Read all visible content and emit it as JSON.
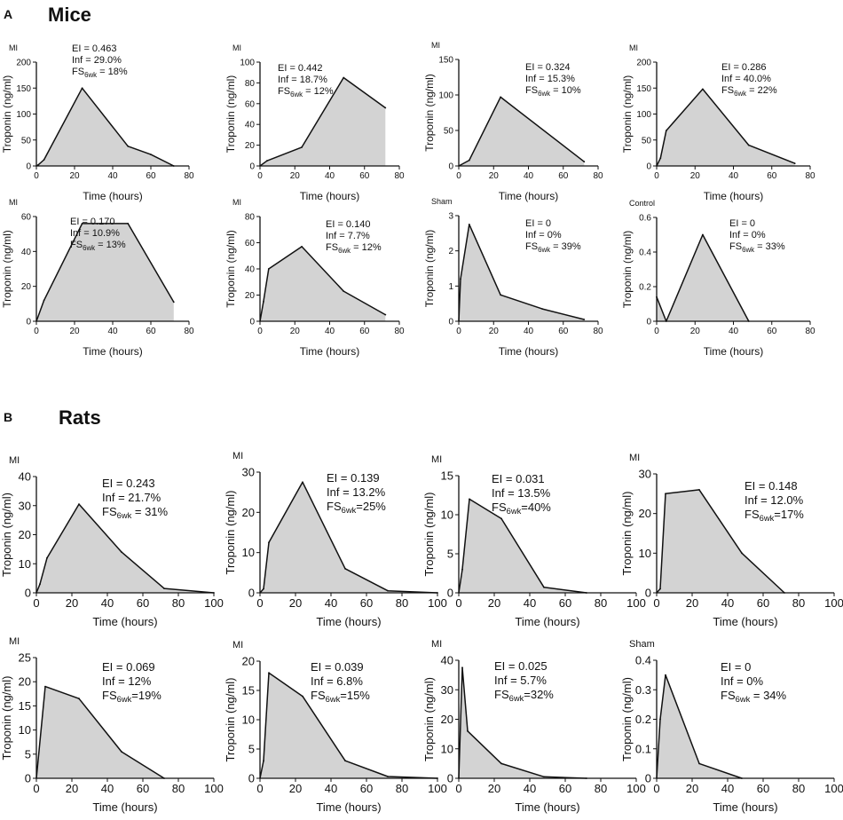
{
  "panels": [
    {
      "letter": "A",
      "title": "Mice"
    },
    {
      "letter": "B",
      "title": "Rats"
    }
  ],
  "chart_data": [
    {
      "type": "area",
      "panel": "A",
      "group": "MI",
      "title": "MI",
      "xlabel": "Time (hours)",
      "ylabel": "Troponin (ng/ml)",
      "xlim": [
        0,
        80
      ],
      "ylim": [
        0,
        200
      ],
      "xticks": [
        0,
        20,
        40,
        60,
        80
      ],
      "yticks": [
        0,
        50,
        100,
        150,
        200
      ],
      "x": [
        0,
        1,
        4,
        24,
        48,
        60,
        72
      ],
      "y": [
        0,
        2,
        12,
        150,
        38,
        22,
        0
      ],
      "annotations": [
        "EI = 0.463",
        "Inf = 29.0%",
        "FS",
        "6wk",
        " = 18%"
      ]
    },
    {
      "type": "area",
      "panel": "A",
      "group": "MI",
      "title": "MI",
      "xlabel": "Time (hours)",
      "ylabel": "Troponin (ng/ml)",
      "xlim": [
        0,
        80
      ],
      "ylim": [
        0,
        100
      ],
      "xticks": [
        0,
        20,
        40,
        60,
        80
      ],
      "yticks": [
        0,
        20,
        40,
        60,
        80,
        100
      ],
      "x": [
        0,
        4,
        24,
        48,
        72
      ],
      "y": [
        0,
        5,
        18,
        85,
        56
      ],
      "annotations": [
        "EI = 0.442",
        "Inf = 18.7%",
        "FS",
        "6wk",
        " = 12%"
      ]
    },
    {
      "type": "area",
      "panel": "A",
      "group": "MI",
      "title": "MI",
      "xlabel": "Time (hours)",
      "ylabel": "Troponin (ng/ml)",
      "xlim": [
        0,
        80
      ],
      "ylim": [
        0,
        150
      ],
      "xticks": [
        0,
        20,
        40,
        60,
        80
      ],
      "yticks": [
        0,
        50,
        100,
        150
      ],
      "x": [
        0,
        6,
        24,
        72
      ],
      "y": [
        0,
        8,
        97,
        6
      ],
      "annotations": [
        "EI = 0.324",
        "Inf = 15.3%",
        "FS",
        "6wk",
        " = 10%"
      ]
    },
    {
      "type": "area",
      "panel": "A",
      "group": "MI",
      "title": "MI",
      "xlabel": "Time (hours)",
      "ylabel": "Troponin (ng/ml)",
      "xlim": [
        0,
        80
      ],
      "ylim": [
        0,
        200
      ],
      "xticks": [
        0,
        20,
        40,
        60,
        80
      ],
      "yticks": [
        0,
        50,
        100,
        150,
        200
      ],
      "x": [
        0,
        2,
        5,
        24,
        48,
        72
      ],
      "y": [
        0,
        15,
        68,
        148,
        40,
        5
      ],
      "annotations": [
        "EI = 0.286",
        "Inf = 40.0%",
        "FS",
        "6wk",
        " = 22%"
      ]
    },
    {
      "type": "area",
      "panel": "A",
      "group": "MI",
      "title": "MI",
      "xlabel": "Time (hours)",
      "ylabel": "Troponin (ng/ml)",
      "xlim": [
        0,
        80
      ],
      "ylim": [
        0,
        60
      ],
      "xticks": [
        0,
        20,
        40,
        60,
        80
      ],
      "yticks": [
        0,
        20,
        40,
        60
      ],
      "x": [
        0,
        4,
        24,
        48,
        72
      ],
      "y": [
        0,
        12,
        56,
        56,
        11
      ],
      "annotations": [
        "EI = 0.170",
        "Inf = 10.9%",
        "FS",
        "6wk",
        " = 13%"
      ]
    },
    {
      "type": "area",
      "panel": "A",
      "group": "MI",
      "title": "MI",
      "xlabel": "Time (hours)",
      "ylabel": "Troponin (ng/ml)",
      "xlim": [
        0,
        80
      ],
      "ylim": [
        0,
        80
      ],
      "xticks": [
        0,
        20,
        40,
        60,
        80
      ],
      "yticks": [
        0,
        20,
        40,
        60,
        80
      ],
      "x": [
        0,
        2,
        5,
        24,
        48,
        72
      ],
      "y": [
        0,
        15,
        40,
        57,
        23,
        5
      ],
      "annotations": [
        "EI = 0.140",
        "Inf = 7.7%",
        "FS",
        "6wk",
        " = 12%"
      ]
    },
    {
      "type": "area",
      "panel": "A",
      "group": "Sham",
      "title": "Sham",
      "xlabel": "Time (hours)",
      "ylabel": "Troponin (ng/ml)",
      "xlim": [
        0,
        80
      ],
      "ylim": [
        0,
        3
      ],
      "xticks": [
        0,
        20,
        40,
        60,
        80
      ],
      "yticks": [
        0,
        1,
        2,
        3
      ],
      "x": [
        0,
        1,
        6,
        24,
        48,
        72
      ],
      "y": [
        0,
        1.2,
        2.75,
        0.75,
        0.35,
        0.05
      ],
      "annotations": [
        "EI = 0",
        "Inf = 0%",
        "FS",
        "6wk",
        " = 39%"
      ]
    },
    {
      "type": "area",
      "panel": "A",
      "group": "Control",
      "title": "Control",
      "xlabel": "Time (hours)",
      "ylabel": "Troponin (ng/ml)",
      "xlim": [
        0,
        80
      ],
      "ylim": [
        0,
        0.6
      ],
      "xticks": [
        0,
        20,
        40,
        60,
        80
      ],
      "yticks": [
        0,
        0.2,
        0.4,
        0.6
      ],
      "x": [
        0,
        5,
        24,
        48
      ],
      "y": [
        0.14,
        0,
        0.5,
        0
      ],
      "annotations": [
        "EI = 0",
        "Inf = 0%",
        "FS",
        "6wk",
        " = 33%"
      ]
    },
    {
      "type": "area",
      "panel": "B",
      "group": "MI",
      "title": "MI",
      "xlabel": "Time (hours)",
      "ylabel": "Troponin (ng/ml)",
      "xlim": [
        0,
        100
      ],
      "ylim": [
        0,
        40
      ],
      "xticks": [
        0,
        20,
        40,
        60,
        80,
        100
      ],
      "yticks": [
        0,
        10,
        20,
        30,
        40
      ],
      "x": [
        0,
        2,
        6,
        24,
        48,
        72,
        100
      ],
      "y": [
        0,
        3,
        12,
        30.5,
        14,
        1.5,
        0
      ],
      "annotations": [
        "EI = 0.243",
        "Inf = 21.7%",
        "FS",
        "6wk",
        " = 31%"
      ]
    },
    {
      "type": "area",
      "panel": "B",
      "group": "MI",
      "title": "MI",
      "xlabel": "Time (hours)",
      "ylabel": "Troponin (ng/ml)",
      "xlim": [
        0,
        100
      ],
      "ylim": [
        0,
        30
      ],
      "xticks": [
        0,
        20,
        40,
        60,
        80,
        100
      ],
      "yticks": [
        0,
        10,
        20,
        30
      ],
      "x": [
        0,
        2,
        5,
        24,
        48,
        72,
        100
      ],
      "y": [
        0,
        1,
        12.5,
        27.5,
        6,
        0.5,
        0
      ],
      "annotations": [
        "EI = 0.139",
        "Inf = 13.2%",
        "FS",
        "6wk",
        "=25%"
      ]
    },
    {
      "type": "area",
      "panel": "B",
      "group": "MI",
      "title": "MI",
      "xlabel": "Time (hours)",
      "ylabel": "Troponin (ng/ml)",
      "xlim": [
        0,
        100
      ],
      "ylim": [
        0,
        15
      ],
      "xticks": [
        0,
        20,
        40,
        60,
        80,
        100
      ],
      "yticks": [
        0,
        5,
        10,
        15
      ],
      "x": [
        0,
        2,
        6,
        24,
        48,
        72
      ],
      "y": [
        0,
        3,
        12,
        9.5,
        0.7,
        0
      ],
      "annotations": [
        "EI = 0.031",
        "Inf = 13.5%",
        "FS",
        "6wk",
        "=40%"
      ]
    },
    {
      "type": "area",
      "panel": "B",
      "group": "MI",
      "title": "MI",
      "xlabel": "Time (hours)",
      "ylabel": "Troponin (ng/ml)",
      "xlim": [
        0,
        100
      ],
      "ylim": [
        0,
        30
      ],
      "xticks": [
        0,
        20,
        40,
        60,
        80,
        100
      ],
      "yticks": [
        0,
        10,
        20,
        30
      ],
      "x": [
        0,
        2,
        5,
        24,
        48,
        72
      ],
      "y": [
        0,
        1,
        25,
        26,
        10,
        0
      ],
      "annotations": [
        "EI = 0.148",
        "Inf = 12.0%",
        "FS",
        "6wk",
        "=17%"
      ]
    },
    {
      "type": "area",
      "panel": "B",
      "group": "MI",
      "title": "MI",
      "xlabel": "Time (hours)",
      "ylabel": "Troponin (ng/ml)",
      "xlim": [
        0,
        100
      ],
      "ylim": [
        0,
        25
      ],
      "xticks": [
        0,
        20,
        40,
        60,
        80,
        100
      ],
      "yticks": [
        0,
        5,
        10,
        15,
        20,
        25
      ],
      "x": [
        0,
        5,
        24,
        48,
        72
      ],
      "y": [
        0,
        19,
        16.5,
        5.5,
        0
      ],
      "annotations": [
        "EI = 0.069",
        "Inf = 12%",
        "FS",
        "6wk",
        "=19%"
      ]
    },
    {
      "type": "area",
      "panel": "B",
      "group": "MI",
      "title": "MI",
      "xlabel": "Time (hours)",
      "ylabel": "Troponin (ng/ml)",
      "xlim": [
        0,
        100
      ],
      "ylim": [
        0,
        20
      ],
      "xticks": [
        0,
        20,
        40,
        60,
        80,
        100
      ],
      "yticks": [
        0,
        5,
        10,
        15,
        20
      ],
      "x": [
        0,
        2,
        5,
        24,
        48,
        72,
        100
      ],
      "y": [
        0,
        3,
        18,
        14,
        3,
        0.3,
        0
      ],
      "annotations": [
        "EI = 0.039",
        "Inf = 6.8%",
        "FS",
        "6wk",
        "=15%"
      ]
    },
    {
      "type": "area",
      "panel": "B",
      "group": "MI",
      "title": "MI",
      "xlabel": "Time (hours)",
      "ylabel": "Troponin (ng/ml)",
      "xlim": [
        0,
        100
      ],
      "ylim": [
        0,
        40
      ],
      "xticks": [
        0,
        20,
        40,
        60,
        80,
        100
      ],
      "yticks": [
        0,
        10,
        20,
        30,
        40
      ],
      "x": [
        0,
        2,
        5,
        24,
        48,
        72
      ],
      "y": [
        0,
        37.5,
        16,
        5,
        0.5,
        0
      ],
      "annotations": [
        "EI = 0.025",
        "Inf = 5.7%",
        "FS",
        "6wk",
        "=32%"
      ]
    },
    {
      "type": "area",
      "panel": "B",
      "group": "Sham",
      "title": "Sham",
      "xlabel": "Time (hours)",
      "ylabel": "Troponin (ng/ml)",
      "xlim": [
        0,
        100
      ],
      "ylim": [
        0,
        0.4
      ],
      "xticks": [
        0,
        20,
        40,
        60,
        80,
        100
      ],
      "yticks": [
        0,
        0.1,
        0.2,
        0.3,
        0.4
      ],
      "x": [
        0,
        2,
        5,
        24,
        48
      ],
      "y": [
        0,
        0.2,
        0.35,
        0.05,
        0
      ],
      "annotations": [
        "EI = 0",
        "Inf = 0%",
        "FS",
        "6wk",
        " = 34%"
      ]
    }
  ],
  "colors": {
    "fill": "#d3d3d3",
    "line": "#111111",
    "axis": "#111111"
  }
}
